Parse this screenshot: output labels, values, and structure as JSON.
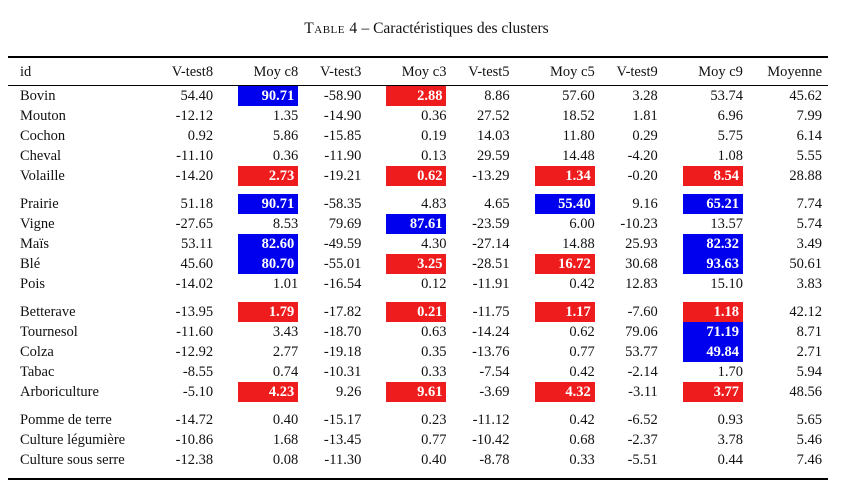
{
  "caption": {
    "label": "Table 4",
    "separator": "–",
    "text": "Caractéristiques des clusters"
  },
  "columns": [
    "id",
    "V-test8",
    "Moy c8",
    "V-test3",
    "Moy c3",
    "V-test5",
    "Moy c5",
    "V-test9",
    "Moy c9",
    "Moyenne"
  ],
  "highlight_colors": {
    "red": "#ee1c1c",
    "blue": "#0000ee"
  },
  "groups": [
    [
      {
        "id": "Bovin",
        "values": [
          "54.40",
          "90.71",
          "-58.90",
          "2.88",
          "8.86",
          "57.60",
          "3.28",
          "53.74",
          "45.62"
        ],
        "hl": {
          "1": "blue",
          "3": "red"
        }
      },
      {
        "id": "Mouton",
        "values": [
          "-12.12",
          "1.35",
          "-14.90",
          "0.36",
          "27.52",
          "18.52",
          "1.81",
          "6.96",
          "7.99"
        ],
        "hl": {}
      },
      {
        "id": "Cochon",
        "values": [
          "0.92",
          "5.86",
          "-15.85",
          "0.19",
          "14.03",
          "11.80",
          "0.29",
          "5.75",
          "6.14"
        ],
        "hl": {}
      },
      {
        "id": "Cheval",
        "values": [
          "-11.10",
          "0.36",
          "-11.90",
          "0.13",
          "29.59",
          "14.48",
          "-4.20",
          "1.08",
          "5.55"
        ],
        "hl": {}
      },
      {
        "id": "Volaille",
        "values": [
          "-14.20",
          "2.73",
          "-19.21",
          "0.62",
          "-13.29",
          "1.34",
          "-0.20",
          "8.54",
          "28.88"
        ],
        "hl": {
          "1": "red",
          "3": "red",
          "5": "red",
          "7": "red"
        }
      }
    ],
    [
      {
        "id": "Prairie",
        "values": [
          "51.18",
          "90.71",
          "-58.35",
          "4.83",
          "4.65",
          "55.40",
          "9.16",
          "65.21",
          "7.74"
        ],
        "hl": {
          "1": "blue",
          "5": "blue",
          "7": "blue"
        }
      },
      {
        "id": "Vigne",
        "values": [
          "-27.65",
          "8.53",
          "79.69",
          "87.61",
          "-23.59",
          "6.00",
          "-10.23",
          "13.57",
          "5.74"
        ],
        "hl": {
          "3": "blue"
        }
      },
      {
        "id": "Maïs",
        "values": [
          "53.11",
          "82.60",
          "-49.59",
          "4.30",
          "-27.14",
          "14.88",
          "25.93",
          "82.32",
          "3.49"
        ],
        "hl": {
          "1": "blue",
          "7": "blue"
        }
      },
      {
        "id": "Blé",
        "values": [
          "45.60",
          "80.70",
          "-55.01",
          "3.25",
          "-28.51",
          "16.72",
          "30.68",
          "93.63",
          "50.61"
        ],
        "hl": {
          "1": "blue",
          "3": "red",
          "5": "red",
          "7": "blue"
        }
      },
      {
        "id": "Pois",
        "values": [
          "-14.02",
          "1.01",
          "-16.54",
          "0.12",
          "-11.91",
          "0.42",
          "12.83",
          "15.10",
          "3.83"
        ],
        "hl": {}
      }
    ],
    [
      {
        "id": "Betterave",
        "values": [
          "-13.95",
          "1.79",
          "-17.82",
          "0.21",
          "-11.75",
          "1.17",
          "-7.60",
          "1.18",
          "42.12"
        ],
        "hl": {
          "1": "red",
          "3": "red",
          "5": "red",
          "7": "red"
        }
      },
      {
        "id": "Tournesol",
        "values": [
          "-11.60",
          "3.43",
          "-18.70",
          "0.63",
          "-14.24",
          "0.62",
          "79.06",
          "71.19",
          "8.71"
        ],
        "hl": {
          "7": "blue"
        }
      },
      {
        "id": "Colza",
        "values": [
          "-12.92",
          "2.77",
          "-19.18",
          "0.35",
          "-13.76",
          "0.77",
          "53.77",
          "49.84",
          "2.71"
        ],
        "hl": {
          "7": "blue"
        }
      },
      {
        "id": "Tabac",
        "values": [
          "-8.55",
          "0.74",
          "-10.31",
          "0.33",
          "-7.54",
          "0.42",
          "-2.14",
          "1.70",
          "5.94"
        ],
        "hl": {}
      },
      {
        "id": "Arboriculture",
        "values": [
          "-5.10",
          "4.23",
          "9.26",
          "9.61",
          "-3.69",
          "4.32",
          "-3.11",
          "3.77",
          "48.56"
        ],
        "hl": {
          "1": "red",
          "3": "red",
          "5": "red",
          "7": "red"
        }
      }
    ],
    [
      {
        "id": "Pomme de terre",
        "values": [
          "-14.72",
          "0.40",
          "-15.17",
          "0.23",
          "-11.12",
          "0.42",
          "-6.52",
          "0.93",
          "5.65"
        ],
        "hl": {}
      },
      {
        "id": "Culture légumière",
        "values": [
          "-10.86",
          "1.68",
          "-13.45",
          "0.77",
          "-10.42",
          "0.68",
          "-2.37",
          "3.78",
          "5.46"
        ],
        "hl": {}
      },
      {
        "id": "Culture sous serre",
        "values": [
          "-12.38",
          "0.08",
          "-11.30",
          "0.40",
          "-8.78",
          "0.33",
          "-5.51",
          "0.44",
          "7.46"
        ],
        "hl": {}
      }
    ]
  ]
}
